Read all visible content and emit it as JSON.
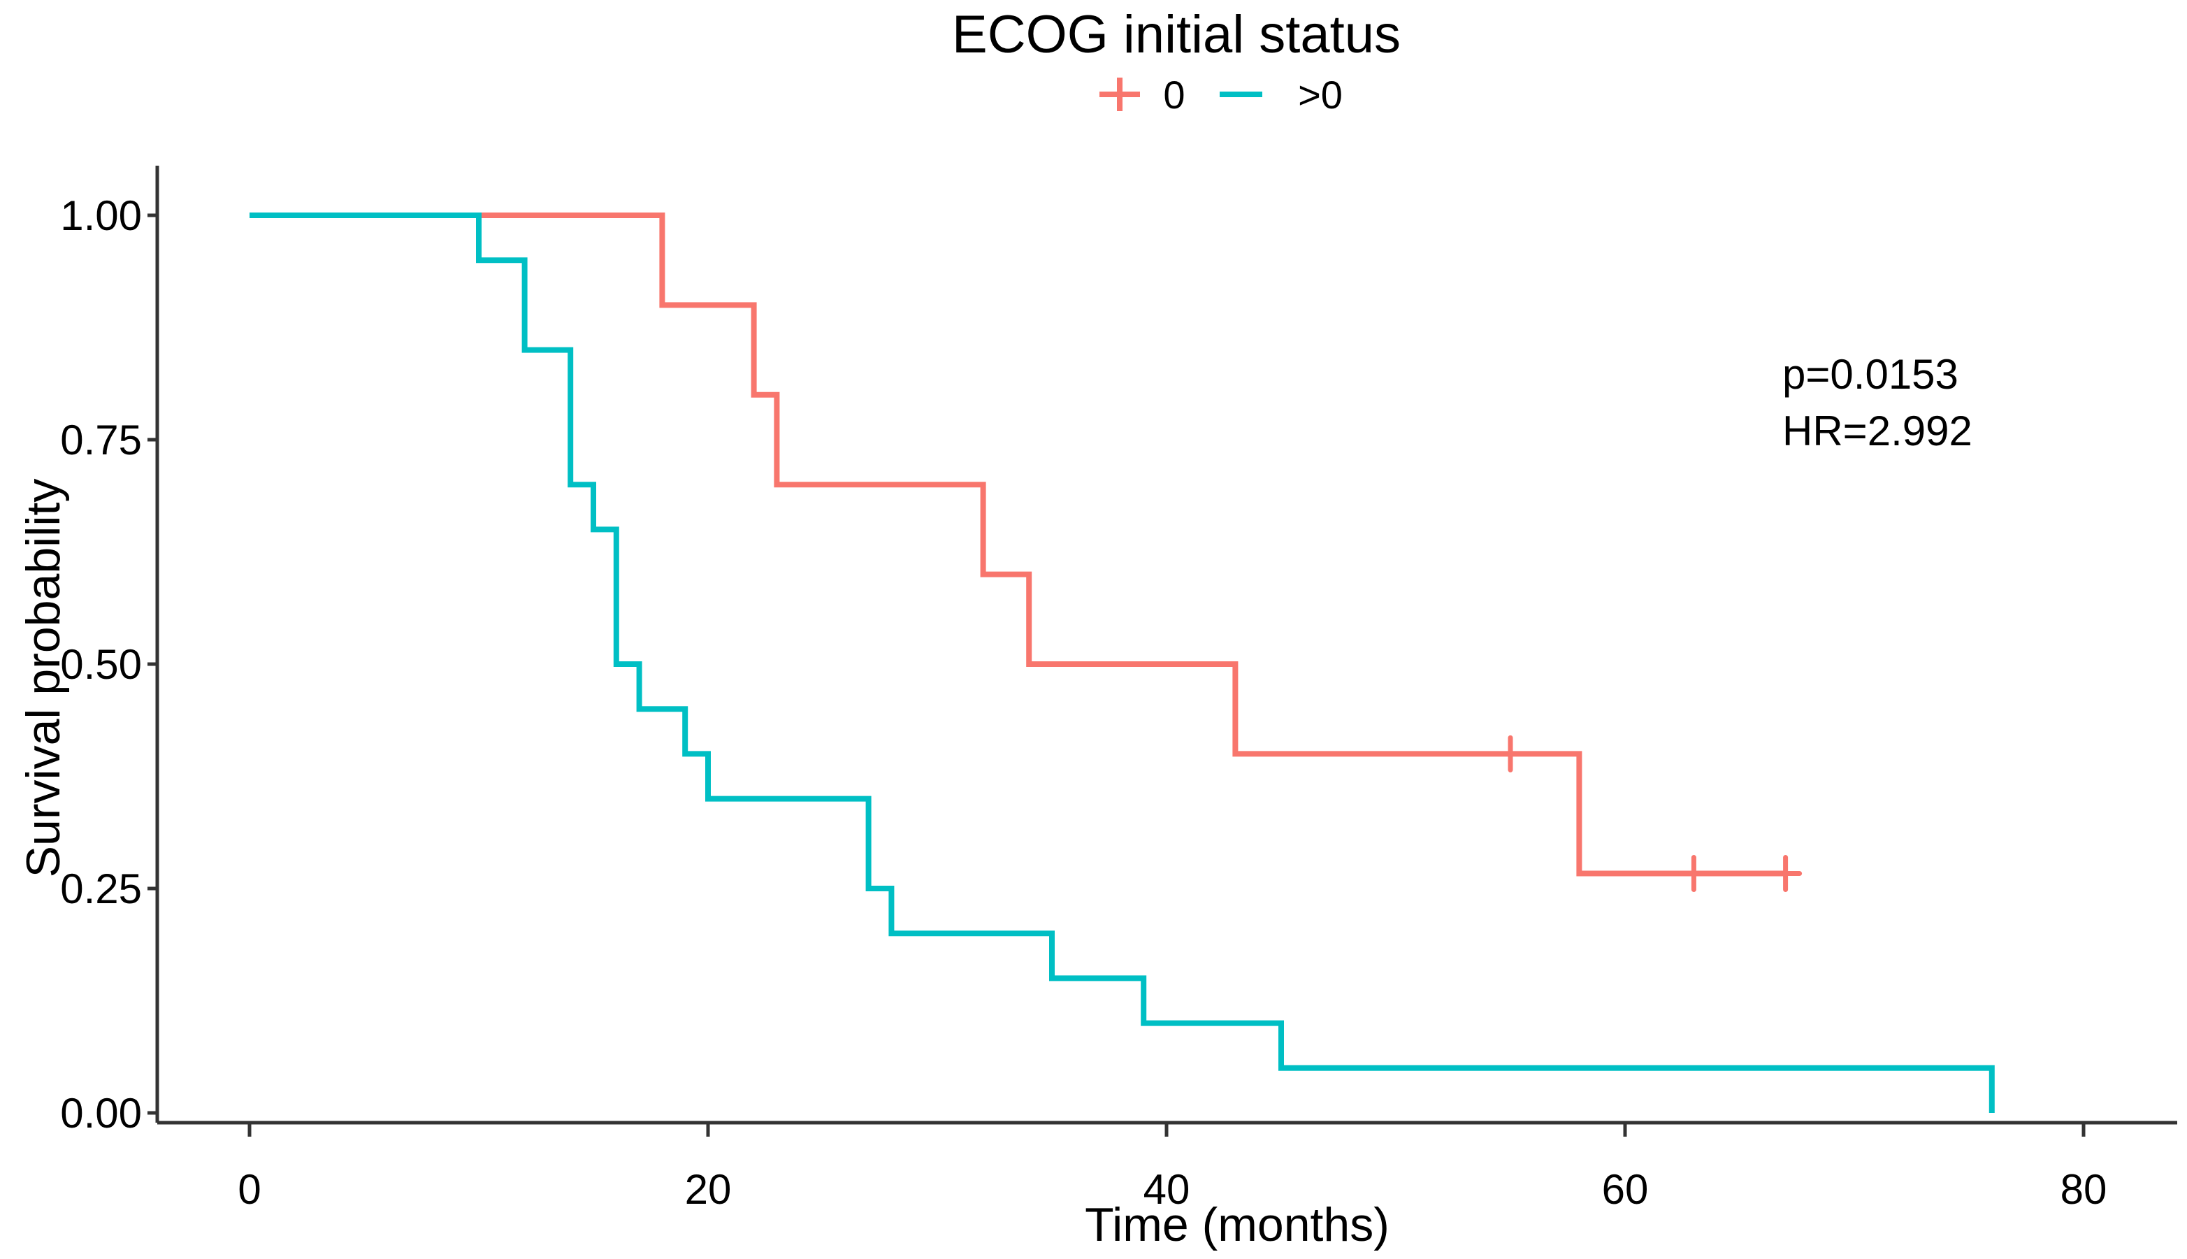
{
  "chart_data": {
    "type": "line",
    "subtype": "kaplan_meier_step",
    "title": "ECOG initial status",
    "xlabel": "Time (months)",
    "ylabel": "Survival probability",
    "xlim": [
      0,
      80
    ],
    "ylim": [
      0.0,
      1.0
    ],
    "x_ticks": [
      0,
      20,
      40,
      60,
      80
    ],
    "x_tick_labels": [
      "0",
      "20",
      "40",
      "60",
      "80"
    ],
    "y_ticks": [
      0.0,
      0.25,
      0.5,
      0.75,
      1.0
    ],
    "y_tick_labels": [
      "0.00",
      "0.25",
      "0.50",
      "0.75",
      "1.00"
    ],
    "grid": false,
    "legend_position": "top",
    "annotation": {
      "p_value": "p=0.0153",
      "hazard_ratio": "HR=2.992"
    },
    "series": [
      {
        "name": "0",
        "group": "ECOG 0",
        "color": "#F8766D",
        "steps": [
          [
            0,
            1.0
          ],
          [
            18,
            0.9
          ],
          [
            22,
            0.8
          ],
          [
            23,
            0.7
          ],
          [
            32,
            0.6
          ],
          [
            34,
            0.5
          ],
          [
            43,
            0.4
          ],
          [
            58,
            0.2667
          ]
        ],
        "end_time": 67,
        "censors": [
          [
            55,
            0.4
          ],
          [
            63,
            0.2667
          ],
          [
            67,
            0.2667
          ]
        ]
      },
      {
        "name": ">0",
        "group": "ECOG >0",
        "color": "#00BFC4",
        "steps": [
          [
            0,
            1.0
          ],
          [
            10,
            0.95
          ],
          [
            12,
            0.85
          ],
          [
            14,
            0.7
          ],
          [
            15,
            0.65
          ],
          [
            16,
            0.5
          ],
          [
            17,
            0.45
          ],
          [
            19,
            0.4
          ],
          [
            20,
            0.35
          ],
          [
            27,
            0.25
          ],
          [
            28,
            0.2
          ],
          [
            35,
            0.15
          ],
          [
            39,
            0.1
          ],
          [
            45,
            0.05
          ],
          [
            76,
            0.0
          ]
        ],
        "end_time": 76,
        "censors": []
      }
    ]
  },
  "colors": {
    "series_ecog_0": "#F8766D",
    "series_ecog_gt0": "#00BFC4",
    "axis": "#333333",
    "text": "#000000",
    "background": "#ffffff"
  }
}
